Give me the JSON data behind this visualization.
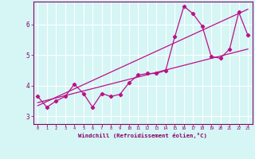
{
  "xlabel": "Windchill (Refroidissement éolien,°C)",
  "bg_color": "#d6f5f5",
  "line_color": "#bb1188",
  "grid_color": "#ffffff",
  "xlim": [
    -0.5,
    23.5
  ],
  "ylim": [
    2.75,
    6.75
  ],
  "yticks": [
    3,
    4,
    5,
    6
  ],
  "xticks": [
    0,
    1,
    2,
    3,
    4,
    5,
    6,
    7,
    8,
    9,
    10,
    11,
    12,
    13,
    14,
    15,
    16,
    17,
    18,
    19,
    20,
    21,
    22,
    23
  ],
  "series1_x": [
    0,
    1,
    2,
    3,
    4,
    5,
    6,
    7,
    8,
    9,
    10,
    11,
    12,
    13,
    14,
    15,
    16,
    17,
    18,
    19,
    20,
    21,
    22,
    23
  ],
  "series1_y": [
    3.65,
    3.3,
    3.5,
    3.65,
    4.05,
    3.75,
    3.3,
    3.75,
    3.65,
    3.72,
    4.1,
    4.35,
    4.4,
    4.4,
    4.5,
    5.6,
    6.6,
    6.35,
    5.95,
    4.95,
    4.9,
    5.2,
    6.4,
    5.65
  ],
  "trend1_x": [
    0,
    23
  ],
  "trend1_y": [
    3.45,
    5.2
  ],
  "trend2_x": [
    0,
    23
  ],
  "trend2_y": [
    3.35,
    6.5
  ]
}
